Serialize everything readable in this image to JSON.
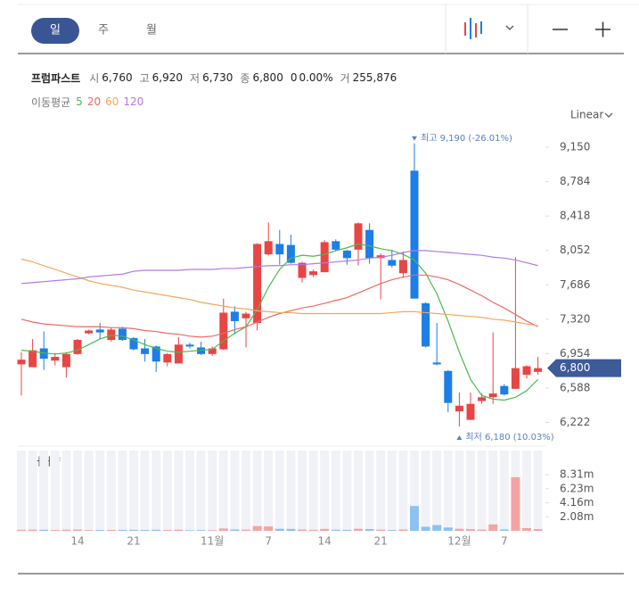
{
  "toolbar": {
    "tabs": [
      "일",
      "주",
      "월"
    ]
  },
  "quote": {
    "name": "프럼파스트",
    "items": [
      {
        "label": "시",
        "value": "6,760"
      },
      {
        "label": "고",
        "value": "6,920"
      },
      {
        "label": "저",
        "value": "6,730"
      },
      {
        "label": "종",
        "value": "6,800"
      }
    ],
    "change": "0",
    "change_rate": "0.00%",
    "volume_label": "거",
    "volume": "255,876"
  },
  "ma_legend_title": "이동평균",
  "scale_label": "Linear",
  "chart_data": {
    "type": "candlestick",
    "categories": [
      null,
      null,
      null,
      null,
      null,
      "14",
      null,
      null,
      null,
      null,
      "21",
      null,
      null,
      null,
      null,
      null,
      null,
      "11월",
      null,
      null,
      null,
      null,
      "7",
      null,
      null,
      null,
      null,
      "14",
      null,
      null,
      null,
      null,
      "21",
      null,
      null,
      null,
      null,
      null,
      null,
      "12월",
      null,
      null,
      null,
      "7",
      null,
      null,
      null
    ],
    "open": [
      6840,
      6810,
      7010,
      6880,
      6810,
      6950,
      7170,
      7210,
      7100,
      7220,
      7120,
      7010,
      7030,
      6860,
      6850,
      7050,
      7020,
      6950,
      7000,
      7400,
      7330,
      7280,
      8010,
      8120,
      8110,
      7760,
      7790,
      7820,
      8150,
      8050,
      8060,
      8270,
      7970,
      7950,
      7810,
      8900,
      7490,
      6860,
      6770,
      6340,
      6250,
      6450,
      6490,
      6610,
      6580,
      6730,
      6760
    ],
    "high": [
      6970,
      7110,
      7190,
      6960,
      6970,
      7110,
      7210,
      7280,
      7230,
      7240,
      7130,
      7110,
      7040,
      6960,
      7130,
      7070,
      7080,
      7030,
      7540,
      7460,
      7400,
      8130,
      8350,
      8270,
      8220,
      7930,
      7850,
      8160,
      8170,
      8060,
      8350,
      8340,
      8020,
      8060,
      8040,
      9190,
      7500,
      7280,
      6780,
      6540,
      6540,
      6530,
      7180,
      6630,
      7980,
      6830,
      6920
    ],
    "low": [
      6510,
      6810,
      6780,
      6830,
      6700,
      6940,
      7160,
      7110,
      7080,
      7090,
      6990,
      6870,
      6760,
      6820,
      6850,
      7010,
      6940,
      6930,
      6990,
      7160,
      7020,
      7200,
      8000,
      7900,
      7910,
      7710,
      7770,
      7820,
      8050,
      7900,
      7890,
      7910,
      7530,
      7870,
      7760,
      7540,
      7020,
      6830,
      6330,
      6180,
      6250,
      6420,
      6420,
      6510,
      6580,
      6690,
      6730
    ],
    "close": [
      6890,
      6990,
      6900,
      6920,
      6950,
      7100,
      7200,
      7180,
      7210,
      7100,
      7000,
      6950,
      6870,
      6950,
      7050,
      7030,
      6950,
      7010,
      7390,
      7300,
      7380,
      8120,
      8150,
      8010,
      7920,
      7920,
      7830,
      8140,
      8060,
      7970,
      8340,
      7970,
      8000,
      7890,
      7950,
      7540,
      7030,
      6840,
      6430,
      6400,
      6420,
      6490,
      6530,
      6520,
      6800,
      6820,
      6800
    ],
    "up_color": "#e84545",
    "down_color": "#1c7ee6",
    "series": [
      {
        "name": "5",
        "color": "#4cb84c",
        "values": [
          6990,
          6980,
          6960,
          6950,
          6960,
          6990,
          7050,
          7110,
          7150,
          7140,
          7100,
          7050,
          7010,
          6980,
          6970,
          6980,
          6990,
          7000,
          7090,
          7170,
          7240,
          7420,
          7660,
          7850,
          7970,
          8000,
          7990,
          8010,
          8050,
          8080,
          8120,
          8100,
          8070,
          8050,
          8010,
          7950,
          7810,
          7590,
          7300,
          6970,
          6680,
          6510,
          6470,
          6460,
          6490,
          6560,
          6680
        ]
      },
      {
        "name": "20",
        "color": "#ec6a64",
        "values": [
          7320,
          7290,
          7270,
          7260,
          7250,
          7240,
          7240,
          7240,
          7230,
          7230,
          7220,
          7200,
          7190,
          7170,
          7160,
          7140,
          7130,
          7140,
          7170,
          7210,
          7240,
          7290,
          7340,
          7380,
          7410,
          7440,
          7460,
          7490,
          7520,
          7550,
          7600,
          7650,
          7700,
          7740,
          7770,
          7790,
          7790,
          7770,
          7740,
          7690,
          7630,
          7570,
          7500,
          7440,
          7370,
          7300,
          7240
        ]
      },
      {
        "name": "60",
        "color": "#f0a860",
        "values": [
          7960,
          7930,
          7890,
          7850,
          7810,
          7770,
          7730,
          7700,
          7680,
          7660,
          7630,
          7610,
          7590,
          7570,
          7550,
          7530,
          7500,
          7480,
          7460,
          7440,
          7430,
          7410,
          7400,
          7390,
          7390,
          7380,
          7380,
          7380,
          7380,
          7380,
          7380,
          7380,
          7380,
          7390,
          7400,
          7400,
          7390,
          7380,
          7370,
          7360,
          7350,
          7340,
          7320,
          7310,
          7290,
          7270,
          7250
        ]
      },
      {
        "name": "120",
        "color": "#b07ae6",
        "values": [
          7700,
          7710,
          7720,
          7730,
          7740,
          7750,
          7770,
          7780,
          7790,
          7800,
          7830,
          7840,
          7840,
          7840,
          7840,
          7850,
          7850,
          7850,
          7860,
          7860,
          7870,
          7880,
          7890,
          7890,
          7900,
          7900,
          7910,
          7920,
          7930,
          7940,
          7950,
          7970,
          7980,
          8000,
          8030,
          8050,
          8050,
          8040,
          8030,
          8020,
          8010,
          8000,
          7980,
          7970,
          7950,
          7920,
          7890
        ]
      }
    ],
    "ylim": [
      6066,
      9292
    ],
    "yticks": [
      {
        "value": 9150,
        "label": "9,150"
      },
      {
        "value": 8784,
        "label": "8,784"
      },
      {
        "value": 8418,
        "label": "8,418"
      },
      {
        "value": 8052,
        "label": "8,052"
      },
      {
        "value": 7686,
        "label": "7,686"
      },
      {
        "value": 7320,
        "label": "7,320"
      },
      {
        "value": 6954,
        "label": "6,954"
      },
      {
        "value": 6588,
        "label": "6,588"
      },
      {
        "value": 6222,
        "label": "6,222"
      }
    ],
    "current_price": {
      "value": 6800,
      "label": "6,800"
    },
    "max_annotation": "최고 9,190 (-26.01%)",
    "min_annotation": "최저 6,180 (10.03%)",
    "volume": {
      "title": "거래량",
      "up_color": "#f4a3a3",
      "down_color": "#8cc1f2",
      "values": [
        150000,
        180000,
        160000,
        120000,
        170000,
        200000,
        110000,
        120000,
        130000,
        140000,
        150000,
        130000,
        160000,
        120000,
        170000,
        90000,
        110000,
        100000,
        350000,
        200000,
        180000,
        700000,
        650000,
        300000,
        280000,
        200000,
        150000,
        280000,
        160000,
        140000,
        300000,
        260000,
        180000,
        120000,
        200000,
        3670000,
        600000,
        850000,
        500000,
        300000,
        250000,
        180000,
        950000,
        200000,
        7950000,
        400000,
        255876
      ],
      "ylim": [
        0,
        11900000
      ],
      "yticks": [
        {
          "value": 2080000,
          "label": "2.08m"
        },
        {
          "value": 4160000,
          "label": "4.16m"
        },
        {
          "value": 6230000,
          "label": "6.23m"
        },
        {
          "value": 8310000,
          "label": "8.31m"
        }
      ]
    }
  }
}
